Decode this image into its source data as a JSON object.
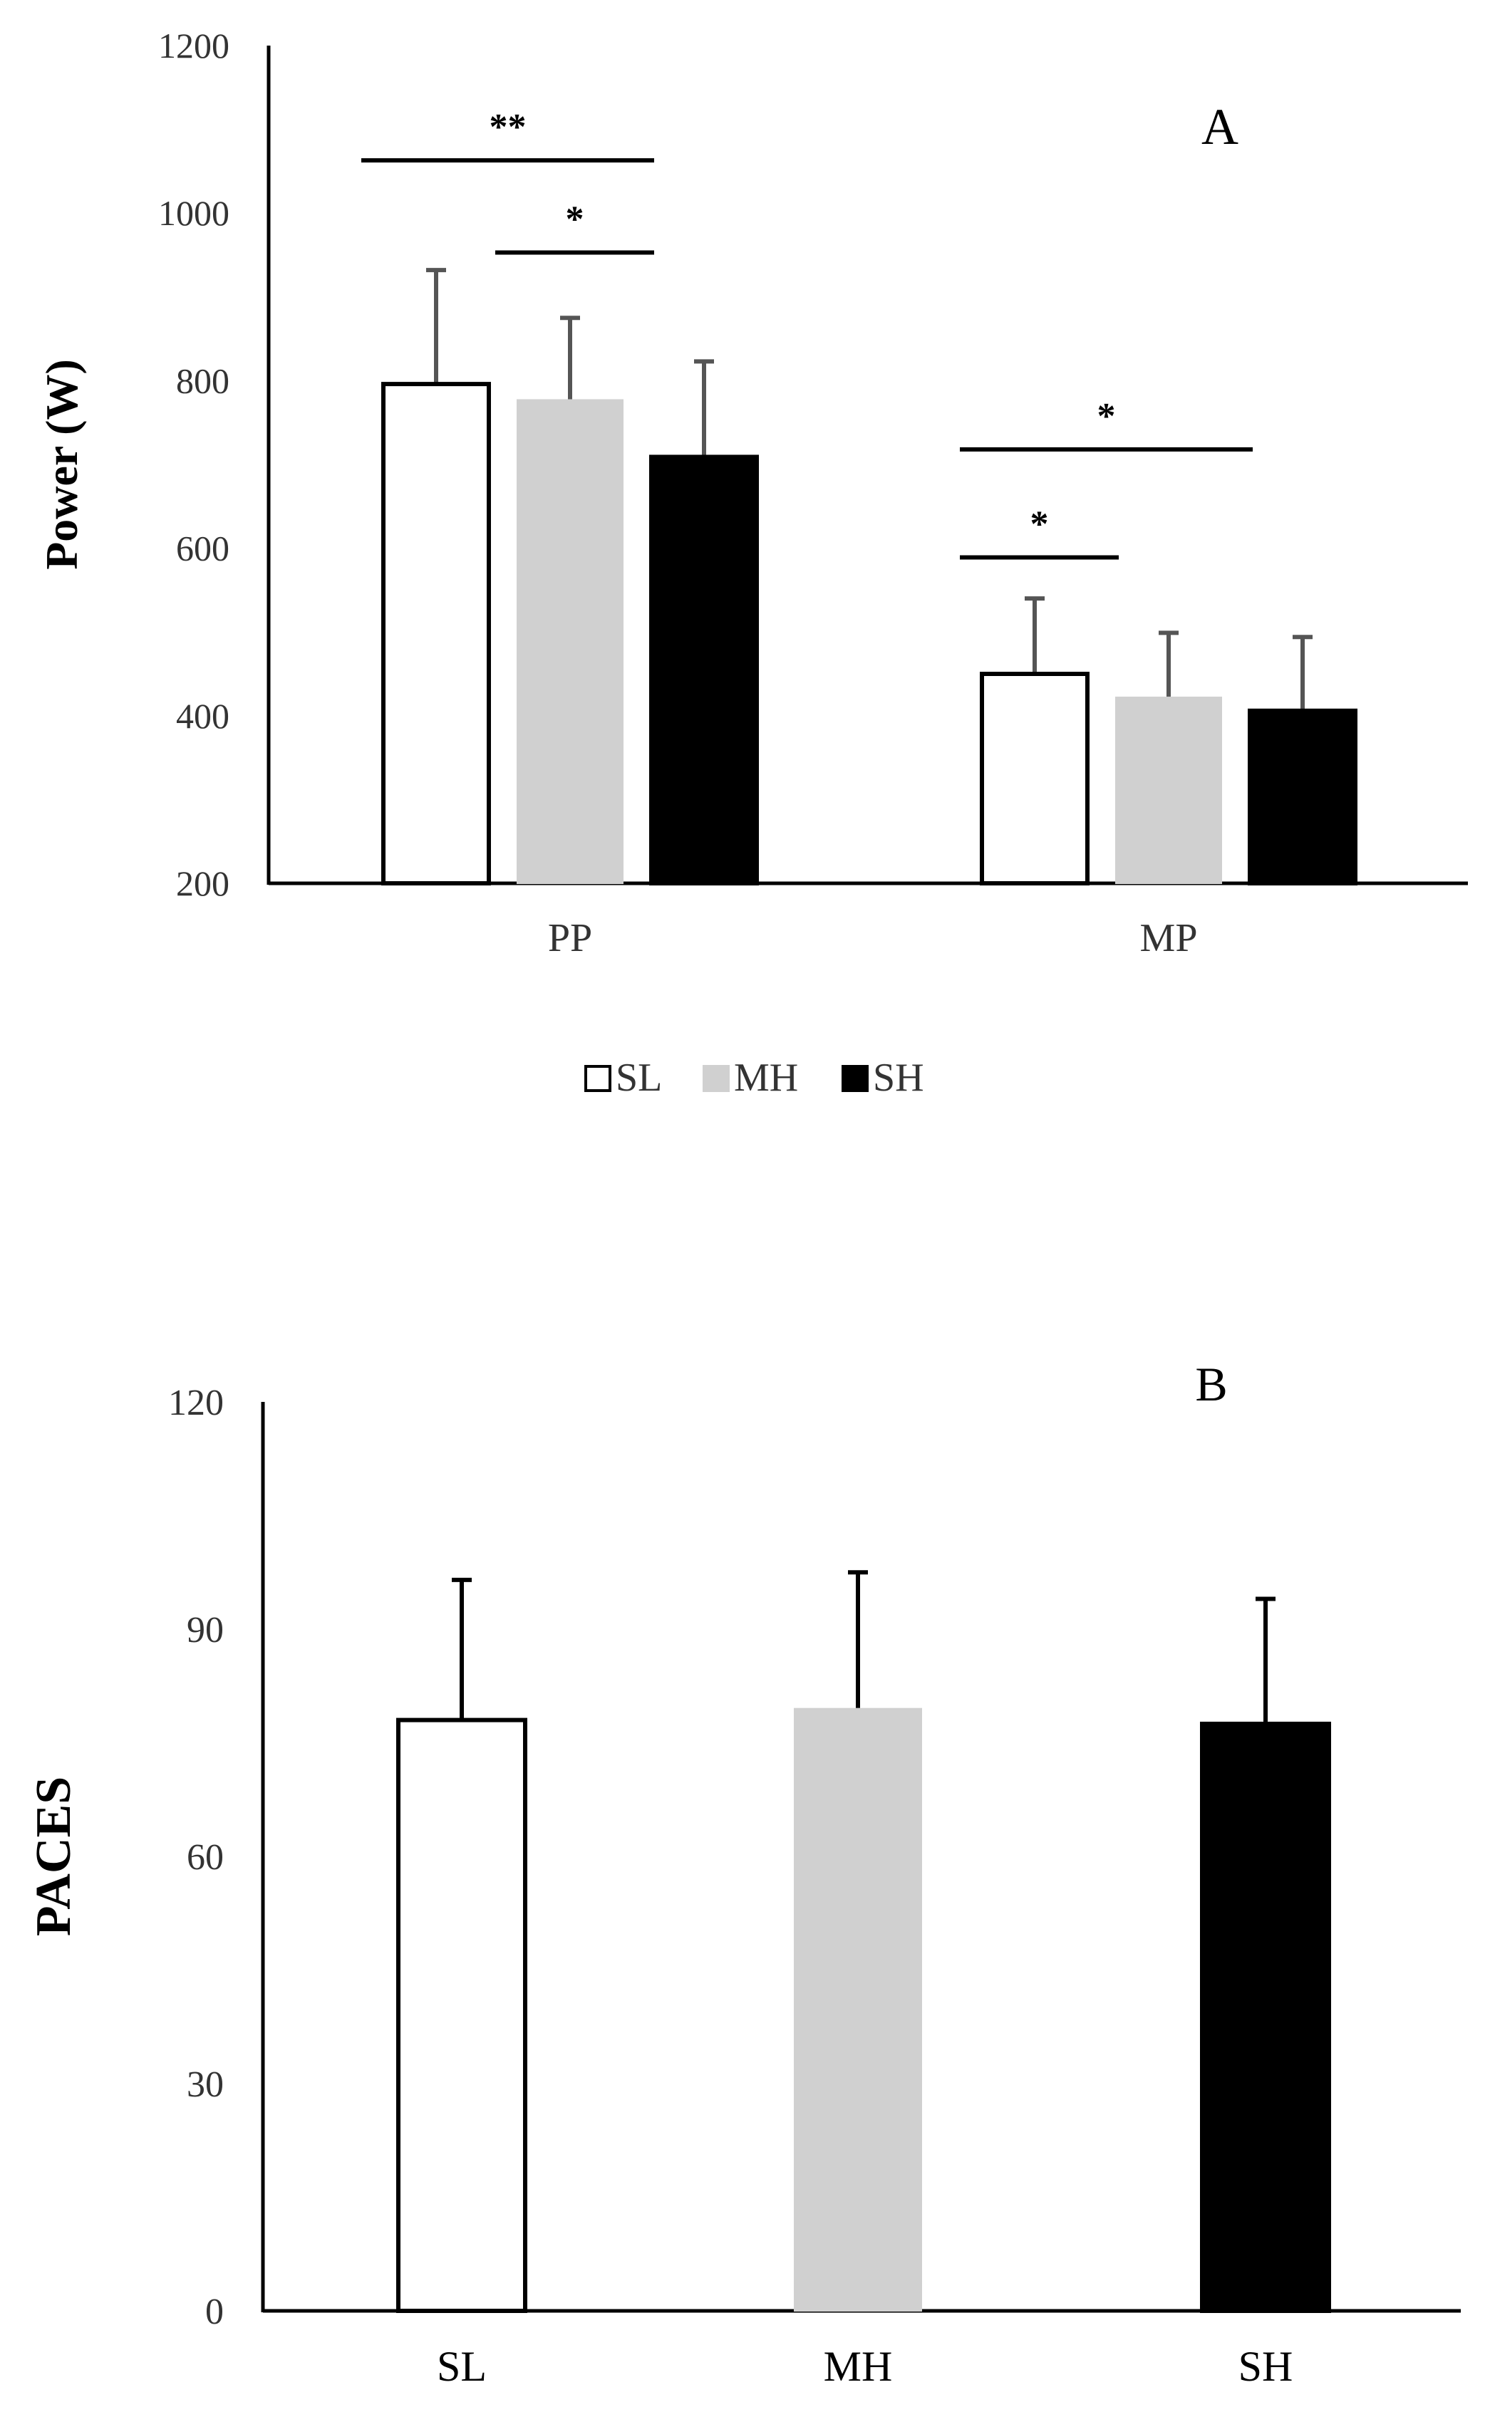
{
  "colors": {
    "SL": "#ffffff",
    "MH": "#d0d0d0",
    "SH": "#000000",
    "axis": "#000000",
    "error_bar_A": "#555555",
    "error_bar_B": "#000000",
    "tick_text": "#333333"
  },
  "chart_data": [
    {
      "id": "A",
      "type": "bar",
      "panel_label": "A",
      "title": "",
      "xlabel": "",
      "ylabel": "Power (W)",
      "ylim": [
        200,
        1200
      ],
      "yticks": [
        200,
        400,
        600,
        800,
        1000,
        1200
      ],
      "categories": [
        "PP",
        "MP"
      ],
      "series": [
        {
          "name": "SL",
          "values": [
            796,
            450
          ],
          "errors": [
            136,
            90
          ]
        },
        {
          "name": "MH",
          "values": [
            777,
            422
          ],
          "errors": [
            98,
            77
          ]
        },
        {
          "name": "SH",
          "values": [
            709,
            406
          ],
          "errors": [
            114,
            88
          ]
        }
      ],
      "legend": {
        "position": "bottom",
        "entries": [
          "SL",
          "MH",
          "SH"
        ]
      },
      "significance": [
        {
          "category": "PP",
          "from": "SL",
          "to": "SH",
          "label": "**",
          "y": 1063
        },
        {
          "category": "PP",
          "from": "MH",
          "to": "SH",
          "label": "*",
          "y": 953
        },
        {
          "category": "MP",
          "from": "SL",
          "to": "SH",
          "label": "*",
          "y": 718
        },
        {
          "category": "MP",
          "from": "SL",
          "to": "MH",
          "label": "*",
          "y": 589
        }
      ]
    },
    {
      "id": "B",
      "type": "bar",
      "panel_label": "B",
      "title": "",
      "xlabel": "",
      "ylabel": "PACES",
      "ylim": [
        0,
        120
      ],
      "yticks": [
        0,
        30,
        60,
        90,
        120
      ],
      "categories": [
        "SL",
        "MH",
        "SH"
      ],
      "values": [
        78,
        79.5,
        77.5
      ],
      "errors": [
        18.5,
        18,
        16.5
      ],
      "bar_colors": [
        "SL",
        "MH",
        "SH"
      ]
    }
  ]
}
